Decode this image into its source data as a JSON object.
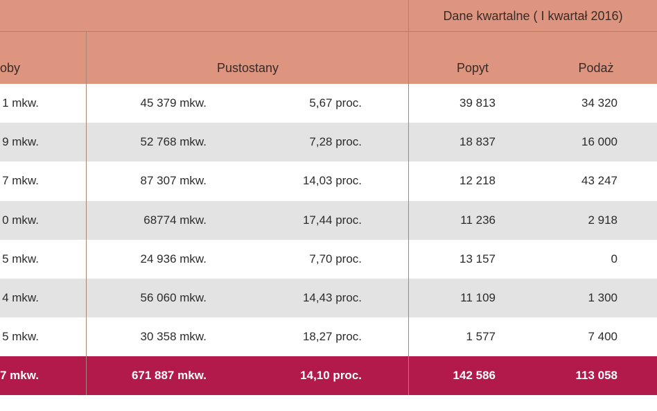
{
  "header": {
    "group_quarterly": "Dane kwartalne ( I kwartał 2016)",
    "col_stock_partial": "oby",
    "col_vacancy": "Pustostany",
    "col_demand": "Popyt",
    "col_supply": "Podaż"
  },
  "rows": [
    {
      "stock": "1 mkw.",
      "vacant_area": "45 379 mkw.",
      "vacant_pct": "5,67 proc.",
      "demand": "39 813",
      "supply": "34 320"
    },
    {
      "stock": "9 mkw.",
      "vacant_area": "52 768 mkw.",
      "vacant_pct": "7,28 proc.",
      "demand": "18 837",
      "supply": "16 000"
    },
    {
      "stock": "7 mkw.",
      "vacant_area": "87 307 mkw.",
      "vacant_pct": "14,03 proc.",
      "demand": "12 218",
      "supply": "43 247"
    },
    {
      "stock": "0 mkw.",
      "vacant_area": "68774 mkw.",
      "vacant_pct": "17,44 proc.",
      "demand": "11 236",
      "supply": "2 918"
    },
    {
      "stock": "5 mkw.",
      "vacant_area": "24 936 mkw.",
      "vacant_pct": "7,70 proc.",
      "demand": "13 157",
      "supply": "0"
    },
    {
      "stock": "4 mkw.",
      "vacant_area": "56 060 mkw.",
      "vacant_pct": "14,43 proc.",
      "demand": "11 109",
      "supply": "1 300"
    },
    {
      "stock": "5 mkw.",
      "vacant_area": "30 358 mkw.",
      "vacant_pct": "18,27 proc.",
      "demand": "1 577",
      "supply": "7 400"
    }
  ],
  "total": {
    "stock": "7 mkw.",
    "vacant_area": "671 887 mkw.",
    "vacant_pct": "14,10 proc.",
    "demand": "142 586",
    "supply": "113 058"
  },
  "colors": {
    "header": "#dd9580",
    "total_row": "#b21a4c",
    "alt_row": "#e3e3e3"
  }
}
